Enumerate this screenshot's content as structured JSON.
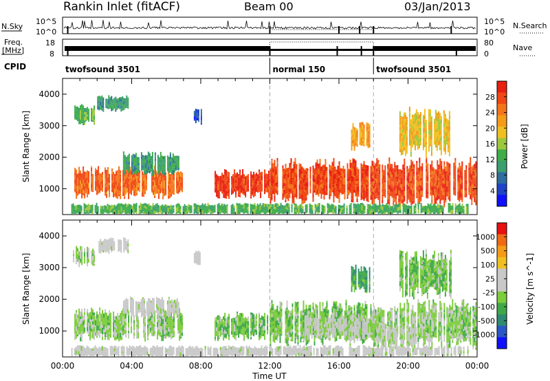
{
  "header": {
    "station": "Rankin Inlet (fitACF)",
    "beam": "Beam 00",
    "date": "03/Jan/2013"
  },
  "status_panels": {
    "nsky_label": "N.Sky",
    "nsearch_label": "N.Search",
    "freq_label_line1": "Freq.",
    "freq_label_line2": "[MHz]",
    "nave_label": "Nave",
    "cpid_label": "CPID",
    "nsky_ticks": [
      "10^5",
      "10^0"
    ],
    "nsearch_ticks": [
      "10^5",
      "10^0"
    ],
    "freq_ticks": [
      "18",
      "8"
    ],
    "nave_ticks": [
      "80",
      "0"
    ]
  },
  "cpid_segments": [
    {
      "label": "twofsound 3501",
      "start_h": 0,
      "end_h": 12
    },
    {
      "label": "normal 150",
      "start_h": 12,
      "end_h": 18
    },
    {
      "label": "twofsound 3501",
      "start_h": 18,
      "end_h": 24
    }
  ],
  "chart_data": [
    {
      "type": "heatmap",
      "name": "power",
      "xlabel": "",
      "ylabel": "Slant Range [km]",
      "xlim": [
        0,
        24
      ],
      "ylim": [
        180,
        4500
      ],
      "yticks": [
        1000,
        2000,
        3000,
        4000
      ],
      "colorbar": {
        "label": "Power [dB]",
        "ticks": [
          "28",
          "24",
          "20",
          "16",
          "12",
          "8",
          "4"
        ],
        "range": [
          0,
          30
        ],
        "colors": [
          "#1010ff",
          "#1f44c8",
          "#2e6e9e",
          "#3a9e6e",
          "#3fae48",
          "#9ec83c",
          "#f0c020",
          "#f59b18",
          "#f4761a",
          "#f04814",
          "#e82010"
        ]
      },
      "echo_regions": [
        {
          "start_h": 0.6,
          "end_h": 6.9,
          "range_low_km": 800,
          "range_high_km": 1600,
          "level": 24
        },
        {
          "start_h": 3.5,
          "end_h": 6.7,
          "range_low_km": 1500,
          "range_high_km": 2100,
          "level": 10
        },
        {
          "start_h": 0.6,
          "end_h": 1.8,
          "range_low_km": 3100,
          "range_high_km": 3600,
          "level": 12
        },
        {
          "start_h": 2.0,
          "end_h": 3.8,
          "range_low_km": 3500,
          "range_high_km": 3900,
          "level": 10
        },
        {
          "start_h": 7.6,
          "end_h": 8.0,
          "range_low_km": 3100,
          "range_high_km": 3500,
          "level": 5
        },
        {
          "start_h": 8.8,
          "end_h": 12.0,
          "range_low_km": 800,
          "range_high_km": 1500,
          "level": 27
        },
        {
          "start_h": 12.0,
          "end_h": 18.0,
          "range_low_km": 700,
          "range_high_km": 1800,
          "level": 26
        },
        {
          "start_h": 16.7,
          "end_h": 17.8,
          "range_low_km": 2300,
          "range_high_km": 3000,
          "level": 20
        },
        {
          "start_h": 18.0,
          "end_h": 23.9,
          "range_low_km": 600,
          "range_high_km": 1800,
          "level": 26
        },
        {
          "start_h": 19.5,
          "end_h": 22.5,
          "range_low_km": 2200,
          "range_high_km": 3400,
          "level": 18
        },
        {
          "start_h": 0.5,
          "end_h": 23.5,
          "range_low_km": 200,
          "range_high_km": 500,
          "level": 12
        }
      ]
    },
    {
      "type": "heatmap",
      "name": "velocity",
      "xlabel": "Time UT",
      "ylabel": "Slant Range [km]",
      "xlim": [
        0,
        24
      ],
      "ylim": [
        180,
        4500
      ],
      "yticks": [
        1000,
        2000,
        3000,
        4000
      ],
      "xtick_labels": [
        "00:00",
        "04:00",
        "08:00",
        "12:00",
        "16:00",
        "20:00",
        "00:00"
      ],
      "xticks_h": [
        0,
        4,
        8,
        12,
        16,
        20,
        24
      ],
      "colorbar": {
        "label": "Velocity [m s^-1]",
        "ticks": [
          "1000",
          "500",
          "100",
          "25",
          "-25",
          "-100",
          "-500",
          "-1000"
        ],
        "range": [
          -1000,
          1000
        ],
        "colors": [
          "#1010ff",
          "#2a58c8",
          "#2e8a70",
          "#3fa848",
          "#7ccc3c",
          "#c8c8c8",
          "#c8c8c8",
          "#f0c020",
          "#f59b18",
          "#f06a14",
          "#e81010"
        ]
      },
      "echo_regions": [
        {
          "start_h": 0.6,
          "end_h": 6.9,
          "range_low_km": 800,
          "range_high_km": 1600,
          "level": -150
        },
        {
          "start_h": 3.5,
          "end_h": 6.7,
          "range_low_km": 1500,
          "range_high_km": 2000,
          "level": 60
        },
        {
          "start_h": 0.6,
          "end_h": 1.8,
          "range_low_km": 3100,
          "range_high_km": 3600,
          "level": -150
        },
        {
          "start_h": 2.0,
          "end_h": 3.8,
          "range_low_km": 3500,
          "range_high_km": 3900,
          "level": 60
        },
        {
          "start_h": 7.6,
          "end_h": 8.0,
          "range_low_km": 3100,
          "range_high_km": 3500,
          "level": 60
        },
        {
          "start_h": 8.8,
          "end_h": 12.0,
          "range_low_km": 800,
          "range_high_km": 1500,
          "level": -200
        },
        {
          "start_h": 12.0,
          "end_h": 18.0,
          "range_low_km": 700,
          "range_high_km": 1800,
          "level": -200
        },
        {
          "start_h": 14.0,
          "end_h": 18.0,
          "range_low_km": 800,
          "range_high_km": 1500,
          "level": 0
        },
        {
          "start_h": 16.7,
          "end_h": 17.8,
          "range_low_km": 2300,
          "range_high_km": 3000,
          "level": -400
        },
        {
          "start_h": 18.0,
          "end_h": 23.9,
          "range_low_km": 600,
          "range_high_km": 1800,
          "level": -150
        },
        {
          "start_h": 18.2,
          "end_h": 20.5,
          "range_low_km": 500,
          "range_high_km": 1200,
          "level": 0
        },
        {
          "start_h": 19.5,
          "end_h": 22.5,
          "range_low_km": 2200,
          "range_high_km": 3400,
          "level": -200
        },
        {
          "start_h": 0.5,
          "end_h": 23.5,
          "range_low_km": 200,
          "range_high_km": 500,
          "level": 60
        }
      ]
    }
  ]
}
